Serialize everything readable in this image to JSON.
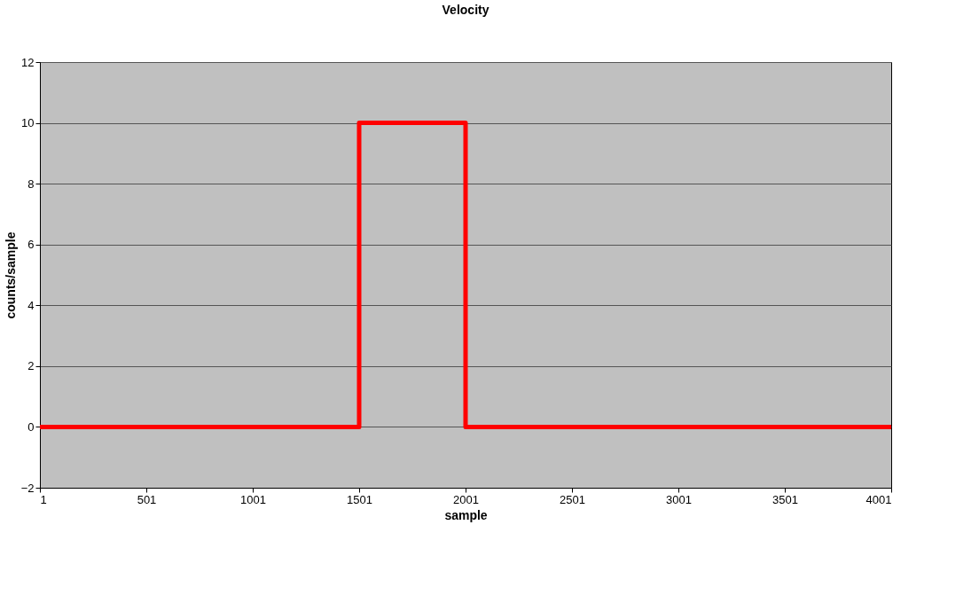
{
  "chart_data": {
    "type": "line",
    "title": "Velocity",
    "xlabel": "sample",
    "ylabel": "counts/sample",
    "x": [
      1,
      1501,
      1501,
      2001,
      2001,
      4001
    ],
    "series": [
      {
        "color": "#ff0000",
        "values": [
          0,
          0,
          10,
          10,
          0,
          0
        ]
      }
    ],
    "xlim": [
      1,
      4001
    ],
    "xticks": [
      1,
      501,
      1001,
      1501,
      2001,
      2501,
      3001,
      3501,
      4001
    ],
    "ylim": [
      -2,
      12
    ],
    "yticks": [
      -2,
      0,
      2,
      4,
      6,
      8,
      10,
      12
    ],
    "grid": "y",
    "legend": false,
    "marker": "none",
    "line_style": "solid"
  }
}
